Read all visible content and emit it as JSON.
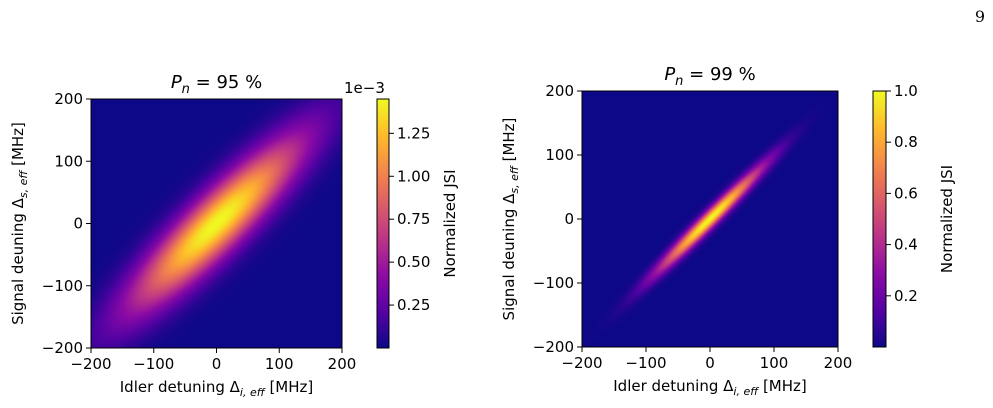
{
  "page_number": "9",
  "colors": {
    "axis": "#000000"
  },
  "chart_data": [
    {
      "type": "heatmap",
      "title_var": "P",
      "title_sub": "n",
      "title_rest": " = 95 %",
      "xlabel_main": "Idler detuning Δ",
      "xlabel_sub": "i, eff",
      "xlabel_unit": " [MHz]",
      "ylabel_main": "Signal deuning Δ",
      "ylabel_sub": "s, eff",
      "ylabel_unit": " [MHz]",
      "xlim": [
        -200,
        200
      ],
      "ylim": [
        -200,
        200
      ],
      "xticks": [
        -200,
        -100,
        0,
        100,
        200
      ],
      "yticks": [
        -200,
        -100,
        0,
        100,
        200
      ],
      "xtick_labels": [
        "−200",
        "−100",
        "0",
        "100",
        "200"
      ],
      "ytick_labels": [
        "−200",
        "−100",
        "0",
        "100",
        "200"
      ],
      "colormap": "plasma",
      "distribution": {
        "center": [
          0,
          0
        ],
        "sigma_major": 130,
        "sigma_minor": 30,
        "angle_deg": 45,
        "peak": 1.45
      },
      "colorbar": {
        "label": "Normalized JSI",
        "range": [
          0,
          1.45
        ],
        "ticks": [
          0.25,
          0.5,
          0.75,
          1.0,
          1.25
        ],
        "tick_labels": [
          "0.25",
          "0.50",
          "0.75",
          "1.00",
          "1.25"
        ],
        "offset_label": "1e−3"
      }
    },
    {
      "type": "heatmap",
      "title_var": "P",
      "title_sub": "n",
      "title_rest": " = 99 %",
      "xlabel_main": "Idler detuning Δ",
      "xlabel_sub": "i, eff",
      "xlabel_unit": " [MHz]",
      "ylabel_main": "Signal deuning Δ",
      "ylabel_sub": "s, eff",
      "ylabel_unit": " [MHz]",
      "xlim": [
        -200,
        200
      ],
      "ylim": [
        -200,
        200
      ],
      "xticks": [
        -200,
        -100,
        0,
        100,
        200
      ],
      "yticks": [
        -200,
        -100,
        0,
        100,
        200
      ],
      "xtick_labels": [
        "−200",
        "−100",
        "0",
        "100",
        "200"
      ],
      "ytick_labels": [
        "−200",
        "−100",
        "0",
        "100",
        "200"
      ],
      "colormap": "plasma",
      "distribution": {
        "center": [
          0,
          0
        ],
        "sigma_major": 80,
        "sigma_minor": 8,
        "angle_deg": 45,
        "peak": 1.0
      },
      "colorbar": {
        "label": "Normalized JSI",
        "range": [
          0,
          1.0
        ],
        "ticks": [
          0.2,
          0.4,
          0.6,
          0.8,
          1.0
        ],
        "tick_labels": [
          "0.2",
          "0.4",
          "0.6",
          "0.8",
          "1.0"
        ],
        "offset_label": ""
      }
    }
  ]
}
